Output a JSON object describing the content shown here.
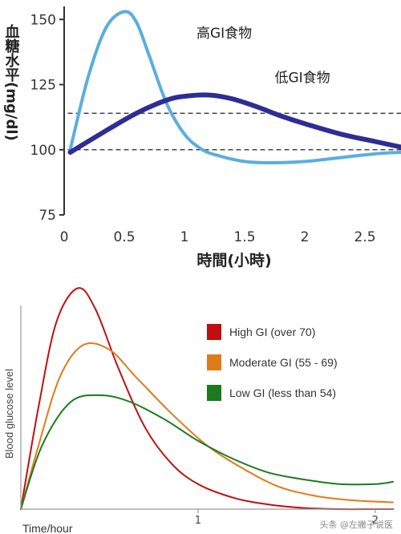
{
  "chart_data": [
    {
      "type": "line",
      "title": "",
      "xlabel": "時間(小時)",
      "ylabel": "血糖水平(mg/dl)",
      "xlim": [
        0,
        2.8
      ],
      "ylim": [
        75,
        155
      ],
      "x_ticks": [
        "0",
        "0.5",
        "1",
        "1.5",
        "2",
        "2.5"
      ],
      "y_ticks": [
        "75",
        "100",
        "125",
        "150"
      ],
      "reference_lines": [
        100,
        114
      ],
      "reference_line_style": "dashed",
      "grid": false,
      "series": [
        {
          "name": "高GI食物",
          "color": "#5aaedf",
          "x": [
            0.05,
            0.2,
            0.35,
            0.5,
            0.6,
            0.7,
            0.85,
            1.0,
            1.15,
            1.3,
            1.5,
            1.7,
            2.0,
            2.3,
            2.6,
            2.8
          ],
          "y": [
            100,
            128,
            147,
            153,
            149,
            137,
            118,
            106,
            100,
            97.5,
            95.5,
            95,
            95.5,
            97,
            98.5,
            99
          ]
        },
        {
          "name": "低GI食物",
          "color": "#2e2d96",
          "x": [
            0.05,
            0.3,
            0.6,
            0.85,
            1.0,
            1.2,
            1.4,
            1.6,
            1.8,
            2.0,
            2.3,
            2.6,
            2.8
          ],
          "y": [
            99,
            106,
            114,
            119,
            120.5,
            121,
            119.5,
            116.5,
            113,
            110,
            106,
            103,
            101
          ]
        }
      ]
    },
    {
      "type": "line",
      "title": "",
      "xlabel": "Time/hour",
      "ylabel": "Blood glucose level",
      "xlim": [
        0,
        2.1
      ],
      "ylim": [
        0,
        1
      ],
      "x_ticks": [
        "1",
        "2"
      ],
      "legend_position": "top-right",
      "grid": false,
      "series": [
        {
          "name": "High GI (over 70)",
          "color": "#c00f0f",
          "x": [
            0,
            0.1,
            0.2,
            0.32,
            0.42,
            0.55,
            0.7,
            0.85,
            1.0,
            1.2,
            1.4,
            1.6,
            1.8,
            2.0,
            2.1
          ],
          "y": [
            0,
            0.45,
            0.82,
            0.97,
            0.88,
            0.62,
            0.36,
            0.2,
            0.11,
            0.05,
            0.02,
            0.005,
            0,
            0,
            0
          ]
        },
        {
          "name": "Moderate GI (55 - 69)",
          "color": "#e07b1a",
          "x": [
            0,
            0.1,
            0.22,
            0.35,
            0.5,
            0.65,
            0.85,
            1.05,
            1.25,
            1.45,
            1.65,
            1.85,
            2.1
          ],
          "y": [
            0,
            0.28,
            0.58,
            0.72,
            0.7,
            0.58,
            0.42,
            0.28,
            0.18,
            0.1,
            0.06,
            0.04,
            0.03
          ]
        },
        {
          "name": "Low GI (less than 54)",
          "color": "#1d7a1f",
          "x": [
            0,
            0.12,
            0.28,
            0.45,
            0.62,
            0.82,
            1.0,
            1.2,
            1.4,
            1.6,
            1.8,
            2.0,
            2.1
          ],
          "y": [
            0,
            0.28,
            0.47,
            0.5,
            0.47,
            0.39,
            0.3,
            0.22,
            0.16,
            0.13,
            0.11,
            0.11,
            0.12
          ]
        }
      ]
    }
  ],
  "watermark": "头条 @左撇子说医"
}
